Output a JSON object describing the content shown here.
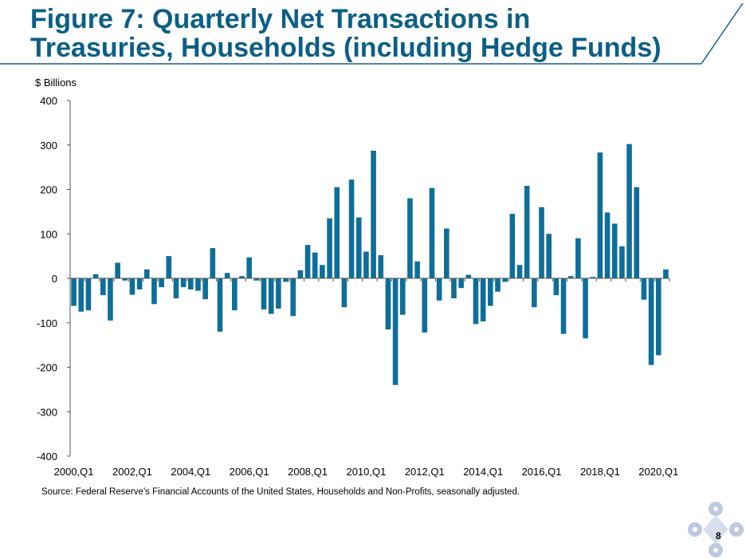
{
  "slide": {
    "title": "Figure 7: Quarterly Net Transactions in Treasuries, Households (including Hedge Funds)",
    "page_number": "8",
    "source": "Source: Federal Reserve’s Financial Accounts of the United States, Households and Non-Profits, seasonally adjusted."
  },
  "colors": {
    "title": "#0b5f86",
    "bars": "#0e6e99",
    "header_rule": "#1b5a8c",
    "logo": "#bcc9e0"
  },
  "chart_data": {
    "type": "bar",
    "title": "",
    "ylabel": "$ Billions",
    "xlabel": "",
    "ylim": [
      -400,
      400
    ],
    "yticks": [
      -400,
      -300,
      -200,
      -100,
      0,
      100,
      200,
      300,
      400
    ],
    "xtick_labels": [
      "2000,Q1",
      "2002,Q1",
      "2004,Q1",
      "2006,Q1",
      "2008,Q1",
      "2010,Q1",
      "2012,Q1",
      "2014,Q1",
      "2016,Q1",
      "2018,Q1",
      "2020,Q1"
    ],
    "grid": false,
    "categories": [
      "2000Q1",
      "2000Q2",
      "2000Q3",
      "2000Q4",
      "2001Q1",
      "2001Q2",
      "2001Q3",
      "2001Q4",
      "2002Q1",
      "2002Q2",
      "2002Q3",
      "2002Q4",
      "2003Q1",
      "2003Q2",
      "2003Q3",
      "2003Q4",
      "2004Q1",
      "2004Q2",
      "2004Q3",
      "2004Q4",
      "2005Q1",
      "2005Q2",
      "2005Q3",
      "2005Q4",
      "2006Q1",
      "2006Q2",
      "2006Q3",
      "2006Q4",
      "2007Q1",
      "2007Q2",
      "2007Q3",
      "2007Q4",
      "2008Q1",
      "2008Q2",
      "2008Q3",
      "2008Q4",
      "2009Q1",
      "2009Q2",
      "2009Q3",
      "2009Q4",
      "2010Q1",
      "2010Q2",
      "2010Q3",
      "2010Q4",
      "2011Q1",
      "2011Q2",
      "2011Q3",
      "2011Q4",
      "2012Q1",
      "2012Q2",
      "2012Q3",
      "2012Q4",
      "2013Q1",
      "2013Q2",
      "2013Q3",
      "2013Q4",
      "2014Q1",
      "2014Q2",
      "2014Q3",
      "2014Q4",
      "2015Q1",
      "2015Q2",
      "2015Q3",
      "2015Q4",
      "2016Q1",
      "2016Q2",
      "2016Q3",
      "2016Q4",
      "2017Q1",
      "2017Q2",
      "2017Q3",
      "2017Q4",
      "2018Q1",
      "2018Q2",
      "2018Q3",
      "2018Q4",
      "2019Q1",
      "2019Q2",
      "2019Q3",
      "2019Q4",
      "2020Q1",
      "2020Q2"
    ],
    "values": [
      -62,
      -75,
      -72,
      9,
      -38,
      -95,
      35,
      -5,
      -37,
      -25,
      20,
      -58,
      -20,
      50,
      -45,
      -20,
      -25,
      -28,
      -47,
      68,
      -120,
      12,
      -72,
      5,
      47,
      -5,
      -70,
      -80,
      -68,
      -8,
      -85,
      18,
      75,
      58,
      30,
      135,
      205,
      -65,
      222,
      137,
      60,
      287,
      52,
      -115,
      -240,
      -82,
      180,
      38,
      -122,
      203,
      -50,
      112,
      -45,
      -22,
      8,
      -103,
      -97,
      -62,
      -30,
      -8,
      145,
      30,
      208,
      -65,
      160,
      100,
      -38,
      -125,
      5,
      90,
      -135,
      3,
      283,
      148,
      123,
      72,
      302,
      205,
      -48,
      -195,
      -173,
      20
    ]
  }
}
